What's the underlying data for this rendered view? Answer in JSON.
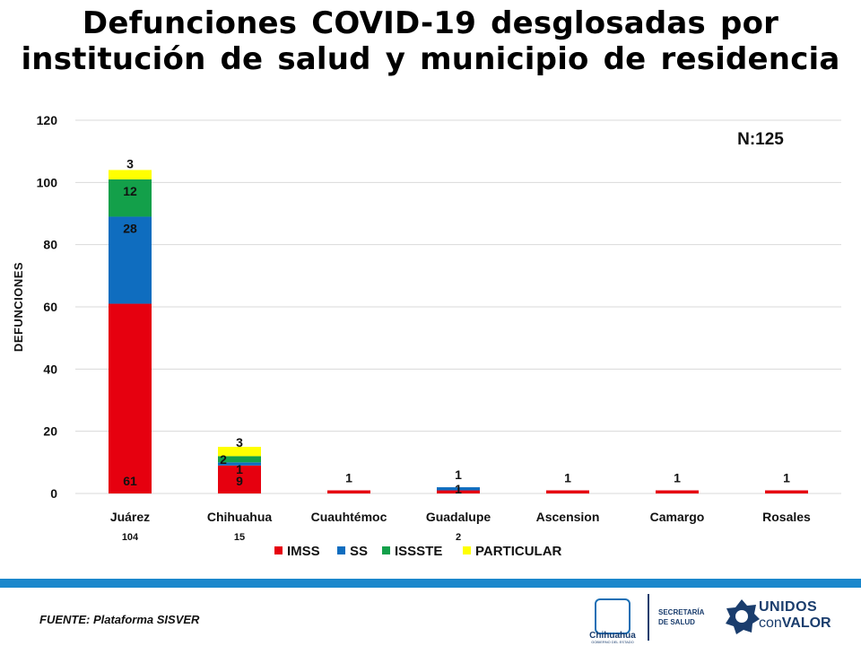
{
  "title_line1": "Defunciones COVID-19 desglosadas por",
  "title_line2": "institución de salud y municipio de residencia",
  "chart_data": {
    "type": "bar",
    "stacked": true,
    "title": "Defunciones COVID-19 desglosadas por institución de salud y municipio de residencia",
    "xlabel": "",
    "ylabel": "DEFUNCIONES",
    "ylim": [
      0,
      120
    ],
    "yticks": [
      0,
      20,
      40,
      60,
      80,
      100,
      120
    ],
    "grid": true,
    "legend_position": "bottom",
    "annotation": "N:125",
    "categories": [
      "Juárez",
      "Chihuahua",
      "Cuauhtémoc",
      "Guadalupe",
      "Ascension",
      "Camargo",
      "Rosales"
    ],
    "category_totals": [
      "104",
      "15",
      "",
      "2",
      "",
      "",
      ""
    ],
    "series": [
      {
        "name": "IMSS",
        "color": "#e6000f",
        "values": [
          61,
          9,
          1,
          1,
          1,
          1,
          1
        ]
      },
      {
        "name": "SS",
        "color": "#0f6dbf",
        "values": [
          28,
          1,
          0,
          1,
          0,
          0,
          0
        ]
      },
      {
        "name": "ISSSTE",
        "color": "#13a04a",
        "values": [
          12,
          2,
          0,
          0,
          0,
          0,
          0
        ]
      },
      {
        "name": "PARTICULAR",
        "color": "#ffff00",
        "values": [
          3,
          3,
          0,
          0,
          0,
          0,
          0
        ]
      }
    ]
  },
  "footer": {
    "source": "FUENTE: Plataforma SISVER",
    "state_name": "Chihuahua",
    "state_sub": "GOBIERNO DEL ESTADO",
    "secretaria_line1": "SECRETARÍA",
    "secretaria_line2": "DE SALUD",
    "unidos_line1": "UNIDOS",
    "unidos_con": "con",
    "unidos_valor": "VALOR"
  }
}
